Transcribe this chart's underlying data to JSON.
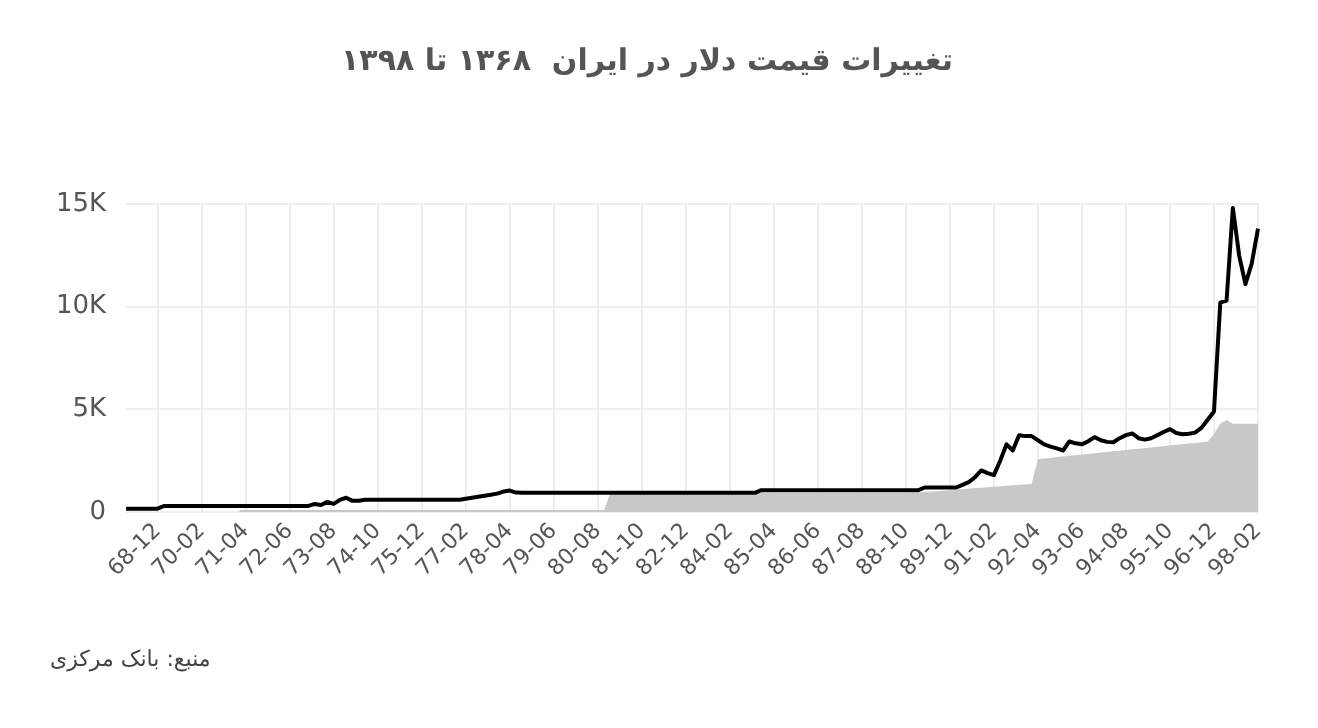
{
  "chart_data": {
    "type": "line",
    "title": "تغییرات قیمت دلار در ایران  ۱۳۶۸ تا ۱۳۹۸",
    "categories": [
      null,
      null,
      null,
      null,
      null,
      "68-12",
      null,
      null,
      null,
      null,
      null,
      null,
      "70-02",
      null,
      null,
      null,
      null,
      null,
      null,
      "71-04",
      null,
      null,
      null,
      null,
      null,
      null,
      "72-06",
      null,
      null,
      null,
      null,
      null,
      null,
      "73-08",
      null,
      null,
      null,
      null,
      null,
      null,
      "74-10",
      null,
      null,
      null,
      null,
      null,
      null,
      "75-12",
      null,
      null,
      null,
      null,
      null,
      null,
      "77-02",
      null,
      null,
      null,
      null,
      null,
      null,
      "78-04",
      null,
      null,
      null,
      null,
      null,
      null,
      "79-06",
      null,
      null,
      null,
      null,
      null,
      null,
      "80-08",
      null,
      null,
      null,
      null,
      null,
      null,
      "81-10",
      null,
      null,
      null,
      null,
      null,
      null,
      "82-12",
      null,
      null,
      null,
      null,
      null,
      null,
      "84-02",
      null,
      null,
      null,
      null,
      null,
      null,
      "85-04",
      null,
      null,
      null,
      null,
      null,
      null,
      "86-06",
      null,
      null,
      null,
      null,
      null,
      null,
      "87-08",
      null,
      null,
      null,
      null,
      null,
      null,
      "88-10",
      null,
      null,
      null,
      null,
      null,
      null,
      "89-12",
      null,
      null,
      null,
      null,
      null,
      null,
      "91-02",
      null,
      null,
      null,
      null,
      null,
      null,
      "92-04",
      null,
      null,
      null,
      null,
      null,
      null,
      "93-06",
      null,
      null,
      null,
      null,
      null,
      null,
      "94-08",
      null,
      null,
      null,
      null,
      null,
      null,
      "95-10",
      null,
      null,
      null,
      null,
      null,
      null,
      "96-12",
      null,
      null,
      null,
      null,
      null,
      null,
      "98-02"
    ],
    "series": [
      {
        "type": "area",
        "color": "#c8c8c8",
        "values": [
          null,
          null,
          null,
          null,
          null,
          null,
          null,
          null,
          null,
          null,
          null,
          null,
          null,
          null,
          null,
          null,
          null,
          null,
          100,
          100,
          100,
          100,
          100,
          100,
          100,
          100,
          100,
          100,
          100,
          100,
          100,
          100,
          100,
          100,
          100,
          100,
          100,
          100,
          100,
          100,
          100,
          100,
          100,
          100,
          100,
          100,
          100,
          100,
          100,
          100,
          100,
          100,
          100,
          100,
          100,
          100,
          100,
          100,
          100,
          100,
          100,
          100,
          100,
          100,
          100,
          100,
          100,
          100,
          100,
          100,
          100,
          100,
          100,
          100,
          100,
          100,
          100,
          940,
          940,
          940,
          940,
          940,
          940,
          940,
          940,
          940,
          940,
          940,
          940,
          940,
          940,
          940,
          940,
          940,
          940,
          940,
          940,
          940,
          940,
          940,
          940,
          940,
          940,
          940,
          940,
          940,
          940,
          940,
          940,
          940,
          940,
          940,
          940,
          940,
          940,
          940,
          940,
          940,
          940,
          940,
          940,
          940,
          940,
          940,
          940,
          940,
          960,
          980,
          1000,
          1020,
          1050,
          1070,
          1100,
          1120,
          1140,
          1170,
          1190,
          1210,
          1240,
          1260,
          1280,
          1310,
          1330,
          1350,
          1380,
          2580,
          2610,
          2640,
          2680,
          2710,
          2740,
          2770,
          2800,
          2830,
          2870,
          2900,
          2930,
          2960,
          2990,
          3020,
          3060,
          3090,
          3120,
          3150,
          3180,
          3210,
          3250,
          3280,
          3310,
          3340,
          3370,
          3400,
          3440,
          3800,
          4300,
          4480,
          4300,
          4300,
          4300,
          4300,
          4300
        ]
      },
      {
        "type": "line",
        "color": "#000000",
        "values": [
          170,
          170,
          170,
          170,
          170,
          170,
          300,
          300,
          300,
          300,
          300,
          300,
          300,
          300,
          300,
          300,
          300,
          300,
          300,
          300,
          300,
          300,
          300,
          300,
          300,
          300,
          300,
          300,
          300,
          300,
          400,
          350,
          500,
          400,
          600,
          700,
          550,
          550,
          600,
          600,
          600,
          600,
          600,
          600,
          600,
          600,
          600,
          600,
          600,
          600,
          600,
          600,
          600,
          600,
          650,
          700,
          750,
          800,
          850,
          900,
          1000,
          1050,
          950,
          940,
          940,
          940,
          940,
          940,
          940,
          940,
          940,
          940,
          940,
          940,
          940,
          940,
          940,
          940,
          940,
          940,
          940,
          940,
          940,
          940,
          940,
          940,
          940,
          940,
          940,
          940,
          940,
          940,
          940,
          940,
          940,
          940,
          940,
          940,
          940,
          940,
          940,
          1070,
          1070,
          1070,
          1070,
          1070,
          1070,
          1070,
          1070,
          1070,
          1070,
          1070,
          1070,
          1070,
          1070,
          1070,
          1070,
          1070,
          1070,
          1070,
          1070,
          1070,
          1070,
          1070,
          1070,
          1070,
          1070,
          1200,
          1200,
          1200,
          1200,
          1200,
          1200,
          1330,
          1460,
          1700,
          2030,
          1900,
          1800,
          2500,
          3300,
          3000,
          3740,
          3700,
          3700,
          3500,
          3300,
          3190,
          3100,
          3000,
          3440,
          3350,
          3300,
          3450,
          3650,
          3500,
          3420,
          3400,
          3600,
          3750,
          3830,
          3600,
          3530,
          3600,
          3750,
          3900,
          4040,
          3850,
          3790,
          3820,
          3870,
          4100,
          4500,
          4900,
          10200,
          10300,
          14800,
          12500,
          11100,
          12100,
          13800
        ]
      }
    ],
    "ylim": [
      0,
      15000
    ],
    "yticks": [
      0,
      {
        "value": 5000,
        "label": "5K"
      },
      {
        "value": 10000,
        "label": "10K"
      },
      {
        "value": 15000,
        "label": "15K"
      }
    ],
    "grid": true,
    "legend": false,
    "annotations": [
      "منبع: بانک مرکزی"
    ]
  }
}
